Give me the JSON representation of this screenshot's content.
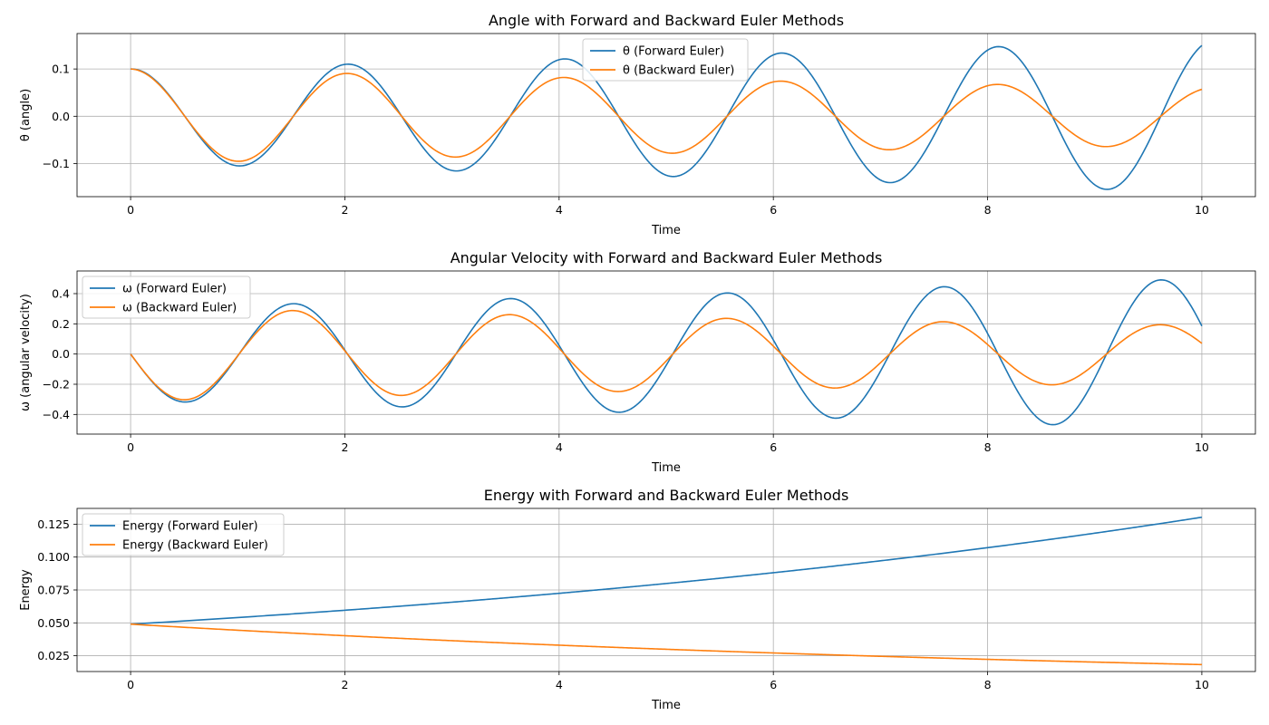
{
  "chart_data": [
    {
      "type": "line",
      "title": "Angle with Forward and Backward Euler Methods",
      "xlabel": "Time",
      "ylabel": "θ (angle)",
      "xlim": [
        -0.5,
        10.5
      ],
      "ylim": [
        -0.17,
        0.175
      ],
      "xticks": [
        0,
        2,
        4,
        6,
        8,
        10
      ],
      "xtick_labels": [
        "0",
        "2",
        "4",
        "6",
        "8",
        "10"
      ],
      "yticks": [
        -0.1,
        0.0,
        0.1
      ],
      "ytick_labels": [
        "−0.1",
        "0.0",
        "0.1"
      ],
      "grid": true,
      "legend": "top-center",
      "series": [
        {
          "name": "θ (Forward Euler)",
          "color": "#1f77b4",
          "kind": "theta",
          "A0": 0.1,
          "growth": 0.0478,
          "omega": 3.1,
          "period": 2.0245
        },
        {
          "name": "θ (Backward Euler)",
          "color": "#ff7f0e",
          "kind": "theta",
          "A0": 0.1,
          "growth": -0.0488,
          "omega": 3.1,
          "period": 2.0245
        }
      ]
    },
    {
      "type": "line",
      "title": "Angular Velocity with Forward and Backward Euler Methods",
      "xlabel": "Time",
      "ylabel": "ω (angular velocity)",
      "xlim": [
        -0.5,
        10.5
      ],
      "ylim": [
        -0.53,
        0.55
      ],
      "xticks": [
        0,
        2,
        4,
        6,
        8,
        10
      ],
      "xtick_labels": [
        "0",
        "2",
        "4",
        "6",
        "8",
        "10"
      ],
      "yticks": [
        -0.4,
        -0.2,
        0.0,
        0.2,
        0.4
      ],
      "ytick_labels": [
        "−0.4",
        "−0.2",
        "0.0",
        "0.2",
        "0.4"
      ],
      "grid": true,
      "legend": "top-left",
      "series": [
        {
          "name": "ω (Forward Euler)",
          "color": "#1f77b4",
          "kind": "omega",
          "A0": 0.31,
          "growth": 0.0478,
          "omega": 3.1,
          "period": 2.0245
        },
        {
          "name": "ω (Backward Euler)",
          "color": "#ff7f0e",
          "kind": "omega",
          "A0": 0.31,
          "growth": -0.0488,
          "omega": 3.1,
          "period": 2.0245
        }
      ]
    },
    {
      "type": "line",
      "title": "Energy with Forward and Backward Euler Methods",
      "xlabel": "Time",
      "ylabel": "Energy",
      "xlim": [
        -0.5,
        10.5
      ],
      "ylim": [
        0.013,
        0.137
      ],
      "xticks": [
        0,
        2,
        4,
        6,
        8,
        10
      ],
      "xtick_labels": [
        "0",
        "2",
        "4",
        "6",
        "8",
        "10"
      ],
      "yticks": [
        0.025,
        0.05,
        0.075,
        0.1,
        0.125
      ],
      "ytick_labels": [
        "0.025",
        "0.050",
        "0.075",
        "0.100",
        "0.125"
      ],
      "grid": true,
      "legend": "top-left",
      "series": [
        {
          "name": "Energy (Forward Euler)",
          "color": "#1f77b4",
          "kind": "energy",
          "E0": 0.049,
          "growth": 0.0978
        },
        {
          "name": "Energy (Backward Euler)",
          "color": "#ff7f0e",
          "kind": "energy",
          "E0": 0.049,
          "growth": -0.0986
        }
      ]
    }
  ]
}
